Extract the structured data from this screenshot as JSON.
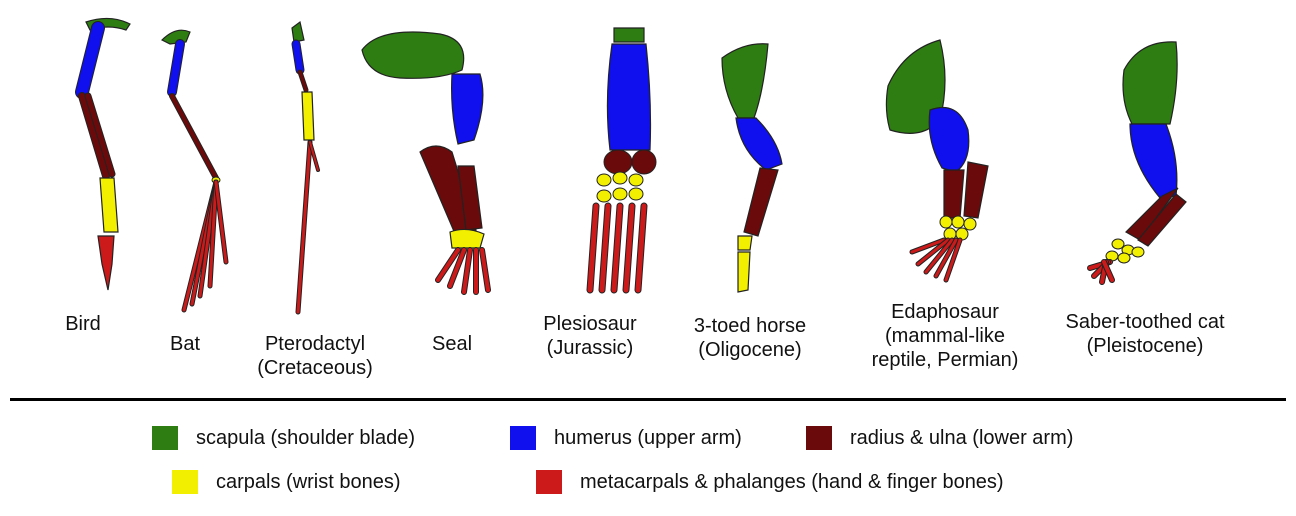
{
  "colors": {
    "scapula": "#2e7d12",
    "humerus": "#1010ee",
    "radius_ulna": "#6a0a0a",
    "carpals": "#f2f000",
    "metacarpals": "#cc1a1a",
    "outline": "#222222"
  },
  "animals": [
    {
      "name": "Bird",
      "lines": [
        "Bird"
      ]
    },
    {
      "name": "Bat",
      "lines": [
        "Bat"
      ]
    },
    {
      "name": "Pterodactyl",
      "lines": [
        "Pterodactyl",
        "(Cretaceous)"
      ]
    },
    {
      "name": "Seal",
      "lines": [
        "Seal"
      ]
    },
    {
      "name": "Plesiosaur",
      "lines": [
        "Plesiosaur",
        "(Jurassic)"
      ]
    },
    {
      "name": "3-toed horse",
      "lines": [
        "3-toed horse",
        "(Oligocene)"
      ]
    },
    {
      "name": "Edaphosaur",
      "lines": [
        "Edaphosaur",
        "(mammal-like",
        "reptile, Permian)"
      ]
    },
    {
      "name": "Saber-toothed cat",
      "lines": [
        "Saber-toothed cat",
        "(Pleistocene)"
      ]
    }
  ],
  "legend": [
    {
      "key": "scapula",
      "label": "scapula (shoulder blade)"
    },
    {
      "key": "humerus",
      "label": "humerus (upper arm)"
    },
    {
      "key": "radius_ulna",
      "label": "radius & ulna (lower arm)"
    },
    {
      "key": "carpals",
      "label": "carpals (wrist bones)"
    },
    {
      "key": "metacarpals",
      "label": "metacarpals & phalanges (hand & finger bones)"
    }
  ]
}
